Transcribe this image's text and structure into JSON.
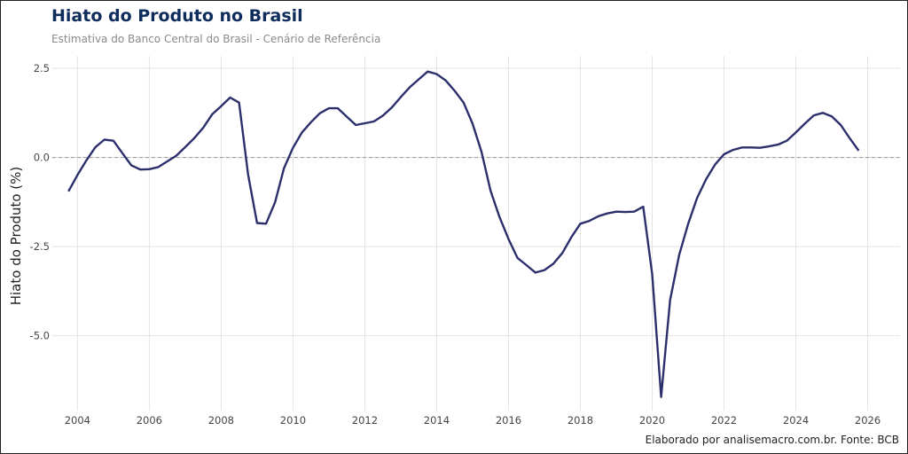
{
  "chart_data": {
    "type": "line",
    "title": "Hiato do Produto no Brasil",
    "subtitle": "Estimativa do Banco Central do Brasil - Cenário de Referência",
    "xlabel": "",
    "ylabel": "Hiato do Produto (%)",
    "caption": "Elaborado por analisemacro.com.br. Fonte: BCB",
    "xlim": [
      2003.3,
      2026.9
    ],
    "ylim": [
      -7.1,
      2.85
    ],
    "xticks": [
      "2004",
      "2006",
      "2008",
      "2010",
      "2012",
      "2014",
      "2016",
      "2018",
      "2020",
      "2022",
      "2024",
      "2026"
    ],
    "yticks": [
      "2.5",
      "0.0",
      "-2.5",
      "-5.0"
    ],
    "ytick_values": [
      2.5,
      0,
      -2.5,
      -5
    ],
    "grid": true,
    "reference_line": {
      "y": 0,
      "style": "dashed",
      "color": "#999999"
    },
    "line_color": "#2b2f6b",
    "x": [
      "2003-Q4",
      "2004-Q1",
      "2004-Q2",
      "2004-Q3",
      "2004-Q4",
      "2005-Q1",
      "2005-Q2",
      "2005-Q3",
      "2005-Q4",
      "2006-Q1",
      "2006-Q2",
      "2006-Q3",
      "2006-Q4",
      "2007-Q1",
      "2007-Q2",
      "2007-Q3",
      "2007-Q4",
      "2008-Q1",
      "2008-Q2",
      "2008-Q3",
      "2008-Q4",
      "2009-Q1",
      "2009-Q2",
      "2009-Q3",
      "2009-Q4",
      "2010-Q1",
      "2010-Q2",
      "2010-Q3",
      "2010-Q4",
      "2011-Q1",
      "2011-Q2",
      "2011-Q3",
      "2011-Q4",
      "2012-Q1",
      "2012-Q2",
      "2012-Q3",
      "2012-Q4",
      "2013-Q1",
      "2013-Q2",
      "2013-Q3",
      "2013-Q4",
      "2014-Q1",
      "2014-Q2",
      "2014-Q3",
      "2014-Q4",
      "2015-Q1",
      "2015-Q2",
      "2015-Q3",
      "2015-Q4",
      "2016-Q1",
      "2016-Q2",
      "2016-Q3",
      "2016-Q4",
      "2017-Q1",
      "2017-Q2",
      "2017-Q3",
      "2017-Q4",
      "2018-Q1",
      "2018-Q2",
      "2018-Q3",
      "2018-Q4",
      "2019-Q1",
      "2019-Q2",
      "2019-Q3",
      "2019-Q4",
      "2020-Q1",
      "2020-Q2",
      "2020-Q3",
      "2020-Q4",
      "2021-Q1",
      "2021-Q2",
      "2021-Q3",
      "2021-Q4",
      "2022-Q1",
      "2022-Q2",
      "2022-Q3",
      "2022-Q4",
      "2023-Q1",
      "2023-Q2",
      "2023-Q3",
      "2023-Q4",
      "2024-Q1",
      "2024-Q2",
      "2024-Q3",
      "2024-Q4",
      "2025-Q1",
      "2025-Q2",
      "2025-Q3",
      "2025-Q4"
    ],
    "y": [
      -0.95,
      -0.49,
      -0.08,
      0.29,
      0.5,
      0.47,
      0.12,
      -0.22,
      -0.34,
      -0.33,
      -0.27,
      -0.11,
      0.05,
      0.29,
      0.54,
      0.83,
      1.21,
      1.44,
      1.68,
      1.54,
      -0.48,
      -1.84,
      -1.86,
      -1.26,
      -0.3,
      0.27,
      0.7,
      0.99,
      1.24,
      1.38,
      1.38,
      1.14,
      0.91,
      0.96,
      1.01,
      1.17,
      1.4,
      1.69,
      1.97,
      2.19,
      2.41,
      2.34,
      2.16,
      1.87,
      1.54,
      0.95,
      0.15,
      -0.93,
      -1.67,
      -2.29,
      -2.82,
      -3.02,
      -3.23,
      -3.16,
      -2.98,
      -2.68,
      -2.24,
      -1.86,
      -1.78,
      -1.65,
      -1.57,
      -1.52,
      -1.53,
      -1.52,
      -1.38,
      -3.27,
      -6.72,
      -4.0,
      -2.74,
      -1.87,
      -1.14,
      -0.61,
      -0.2,
      0.09,
      0.21,
      0.28,
      0.28,
      0.27,
      0.31,
      0.36,
      0.47,
      0.7,
      0.95,
      1.18,
      1.25,
      1.15,
      0.91,
      0.54,
      0.19
    ]
  }
}
